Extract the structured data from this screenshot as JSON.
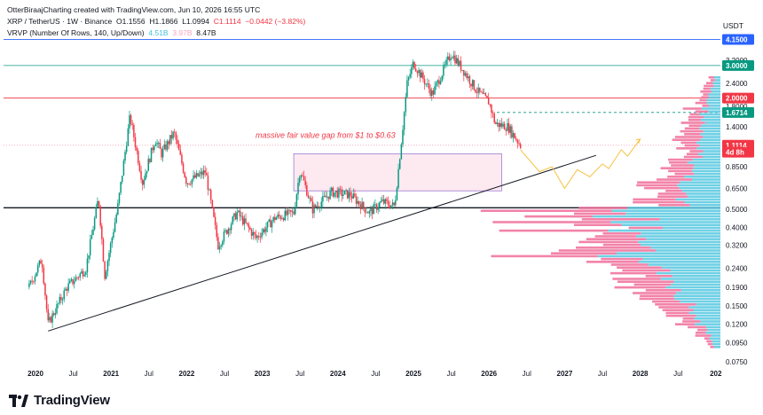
{
  "header": {
    "credit": "OtterBiraajCharting created with TradingView.com, Jun 10, 2026 16:55 UTC",
    "symbol": "XRP / TetherUS · 1W · Binance",
    "o": "O1.1556",
    "h": "H1.1866",
    "l": "L1.0994",
    "c": "C1.1114",
    "chg": "−0.0442 (−3.82%)",
    "vrvp": "VRVP (Number Of Rows, 140, Up/Down)",
    "vr_up": "4.51B",
    "vr_down": "3.97B",
    "vr_total": "8.47B"
  },
  "currency": "USDT",
  "logo": "TradingView",
  "annotation": "massive fair value gap from $1 to $0.63",
  "colors": {
    "up": "#089981",
    "down": "#f23645",
    "vp_up": "#56c8e0",
    "vp_down": "#f06d9a",
    "badge_blue": "#2962ff",
    "badge_green": "#089981",
    "badge_red": "#f23645",
    "fvg_fill": "#fce4ec",
    "fvg_border": "#9c7bd4",
    "projection": "#f5c242"
  },
  "chart_data": {
    "type": "candlestick",
    "timeframe": "1W",
    "y_scale": "log",
    "y_ticks": [
      "3.2000",
      "2.4000",
      "1.8000",
      "1.4000",
      "1.0500",
      "0.8500",
      "0.6500",
      "0.5000",
      "0.4000",
      "0.3200",
      "0.2400",
      "0.1900",
      "0.1500",
      "0.1200",
      "0.0950",
      "0.0750"
    ],
    "x_ticks": [
      "2020",
      "Jul",
      "2021",
      "Jul",
      "2022",
      "Jul",
      "2023",
      "Jul",
      "2024",
      "Jul",
      "2025",
      "Jul",
      "2026",
      "Jul",
      "2027",
      "Jul",
      "2028",
      "Jul",
      "202"
    ],
    "price_badges": [
      {
        "label": "4.1500",
        "value": 4.15,
        "color": "badge_blue"
      },
      {
        "label": "3.0000",
        "value": 3.0,
        "color": "badge_green"
      },
      {
        "label": "2.0000",
        "value": 2.0,
        "color": "badge_red"
      },
      {
        "label": "1.6714",
        "value": 1.6714,
        "color": "badge_green"
      },
      {
        "label": "1.1114",
        "value": 1.1114,
        "color": "badge_red"
      },
      {
        "label": "4d 8h",
        "value": 1.02,
        "color": "badge_red"
      }
    ],
    "horizontal_levels": [
      4.15,
      3.0,
      2.0,
      1.6714,
      1.1114,
      0.51
    ],
    "fair_value_gap": {
      "from": 1.0,
      "to": 0.63,
      "start": "2023-06",
      "end": "2026-03"
    },
    "trendline": {
      "start": {
        "date": "2020-03",
        "price": 0.11
      },
      "end": {
        "date": "2027-06",
        "price": 0.98
      }
    },
    "price_path": [
      [
        "2019-12",
        0.19
      ],
      [
        "2020-02",
        0.27
      ],
      [
        "2020-03",
        0.12
      ],
      [
        "2020-06",
        0.19
      ],
      [
        "2020-09",
        0.24
      ],
      [
        "2020-11",
        0.58
      ],
      [
        "2020-12",
        0.22
      ],
      [
        "2021-02",
        0.5
      ],
      [
        "2021-04",
        1.6
      ],
      [
        "2021-06",
        0.7
      ],
      [
        "2021-08",
        1.2
      ],
      [
        "2021-09",
        1.0
      ],
      [
        "2021-11",
        1.3
      ],
      [
        "2022-01",
        0.7
      ],
      [
        "2022-04",
        0.8
      ],
      [
        "2022-06",
        0.32
      ],
      [
        "2022-09",
        0.48
      ],
      [
        "2022-12",
        0.35
      ],
      [
        "2023-03",
        0.45
      ],
      [
        "2023-06",
        0.48
      ],
      [
        "2023-07",
        0.82
      ],
      [
        "2023-09",
        0.5
      ],
      [
        "2023-12",
        0.62
      ],
      [
        "2024-03",
        0.6
      ],
      [
        "2024-06",
        0.48
      ],
      [
        "2024-08",
        0.55
      ],
      [
        "2024-10",
        0.52
      ],
      [
        "2024-11",
        1.1
      ],
      [
        "2024-12",
        2.4
      ],
      [
        "2025-01",
        3.1
      ],
      [
        "2025-04",
        2.1
      ],
      [
        "2025-07",
        3.5
      ],
      [
        "2025-09",
        2.8
      ],
      [
        "2025-11",
        2.2
      ],
      [
        "2026-01",
        1.9
      ],
      [
        "2026-02",
        1.45
      ],
      [
        "2026-04",
        1.4
      ],
      [
        "2026-06",
        1.11
      ]
    ],
    "projection_path": [
      [
        "2026-06",
        1.05
      ],
      [
        "2026-09",
        0.8
      ],
      [
        "2026-11",
        0.85
      ],
      [
        "2027-01",
        0.65
      ],
      [
        "2027-03",
        0.82
      ],
      [
        "2027-05",
        0.75
      ],
      [
        "2027-07",
        0.88
      ],
      [
        "2027-08",
        0.83
      ],
      [
        "2027-10",
        1.05
      ],
      [
        "2027-11",
        0.97
      ],
      [
        "2028-01",
        1.2
      ]
    ]
  }
}
